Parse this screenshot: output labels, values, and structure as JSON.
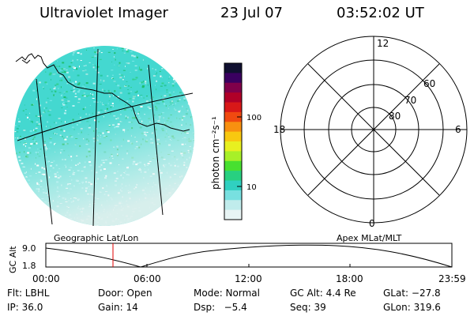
{
  "header": {
    "title": "Ultraviolet Imager",
    "date": "23 Jul 07",
    "time": "03:52:02 UT"
  },
  "colorbar": {
    "unit_label": "photon cm⁻²s⁻¹",
    "ticks": [
      "100",
      "10"
    ],
    "colors": [
      "#101030",
      "#3a0060",
      "#80004a",
      "#b00028",
      "#d81818",
      "#f04a10",
      "#f89010",
      "#f8c810",
      "#e8f020",
      "#a8f028",
      "#48e030",
      "#28d080",
      "#30d0c0",
      "#78e0e0",
      "#c0ecec",
      "#e8f4f4"
    ]
  },
  "image_panel": {
    "label": "Geographic Lat/Lon",
    "fill_color": "#44d8d0",
    "fade_color": "#dff0ee"
  },
  "polar_plot": {
    "label": "Apex MLat/MLT",
    "mlt_labels": {
      "top": "12",
      "left": "18",
      "right": "6",
      "bottom": "0"
    },
    "lat_labels": [
      "60",
      "70",
      "80"
    ]
  },
  "altitude_plot": {
    "ylabel": "GC Alt",
    "yticks": [
      "9.0",
      "1.8"
    ],
    "xticks": [
      "00:00",
      "06:00",
      "12:00",
      "18:00",
      "23:59"
    ],
    "marker_color": "#e00000"
  },
  "footer": {
    "row1": [
      "Flt: LBHL",
      "Door: Open",
      "Mode: Normal",
      "GC Alt: 4.4 Re",
      "GLat: −27.8"
    ],
    "row2": [
      "IP: 36.0",
      "Gain: 14",
      "Dsp:   −5.4",
      "Seq: 39",
      "GLon: 319.6"
    ]
  }
}
